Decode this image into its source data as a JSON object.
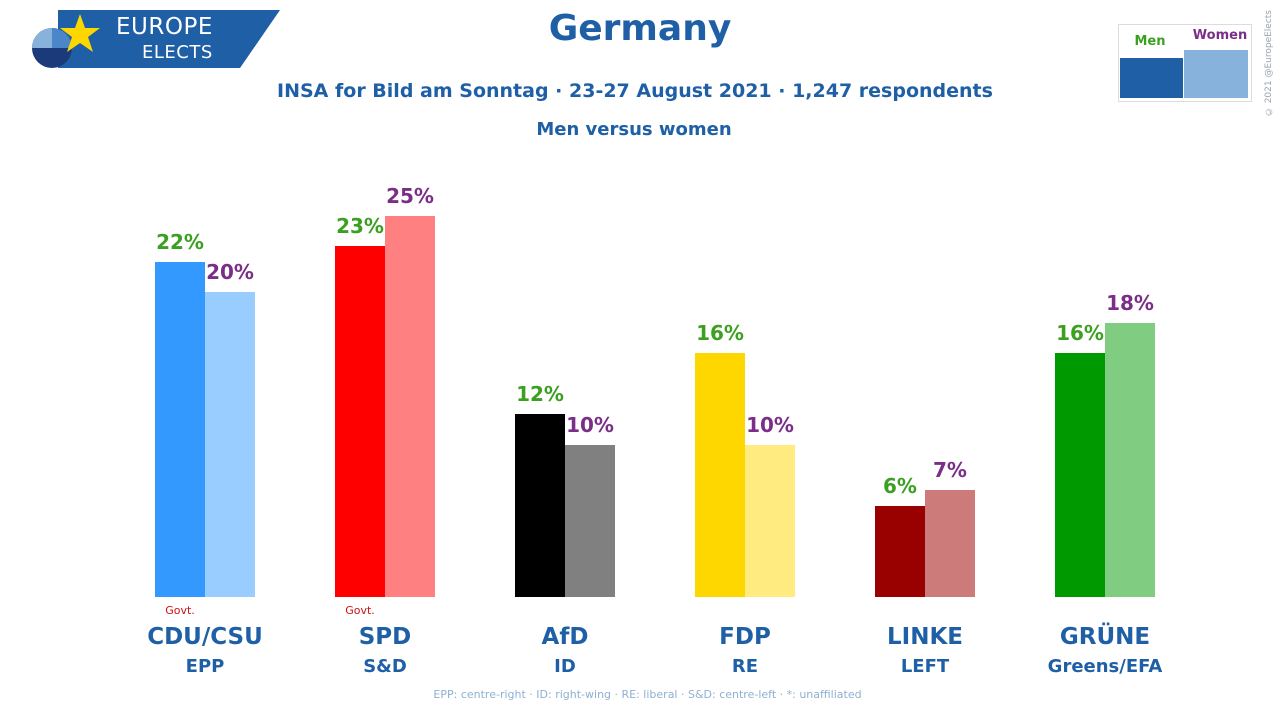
{
  "header": {
    "logo_line1": "EUROPE",
    "logo_line2": "ELECTS",
    "title": "Germany",
    "subtitle": "INSA for Bild am Sonntag · 23-27 August 2021 · 1,247 respondents",
    "subtitle2": "Men versus women",
    "copyright": "© 2021 @EuropeElects"
  },
  "legend": {
    "men": "Men",
    "women": "Women"
  },
  "colors": {
    "title": "#1f5fa6",
    "men_label": "#3ba020",
    "women_label": "#7a2e88",
    "govt": "#cc1111"
  },
  "chart_data": {
    "type": "bar",
    "title": "Germany",
    "subtitle": "INSA for Bild am Sonntag · 23-27 August 2021 · 1,247 respondents",
    "categories": [
      "CDU/CSU",
      "SPD",
      "AfD",
      "FDP",
      "LINKE",
      "GRÜNE"
    ],
    "groups": [
      "EPP",
      "S&D",
      "ID",
      "RE",
      "LEFT",
      "Greens/EFA"
    ],
    "govt": [
      true,
      true,
      false,
      false,
      false,
      false
    ],
    "govt_label": "Govt.",
    "series": [
      {
        "name": "Men",
        "values": [
          22,
          23,
          12,
          16,
          6,
          16
        ]
      },
      {
        "name": "Women",
        "values": [
          20,
          25,
          10,
          10,
          7,
          18
        ]
      }
    ],
    "colors_men": [
      "#3399ff",
      "#ff0000",
      "#000000",
      "#ffd700",
      "#990000",
      "#009900"
    ],
    "colors_women": [
      "#99ccff",
      "#ff8080",
      "#808080",
      "#ffeb80",
      "#cc7a7a",
      "#80cc80"
    ],
    "value_suffix": "%",
    "ylim": [
      0,
      25
    ],
    "grid": false,
    "legend": "top-right"
  },
  "footnote": "EPP: centre-right · ID: right-wing · RE: liberal · S&D: centre-left · *: unaffiliated"
}
